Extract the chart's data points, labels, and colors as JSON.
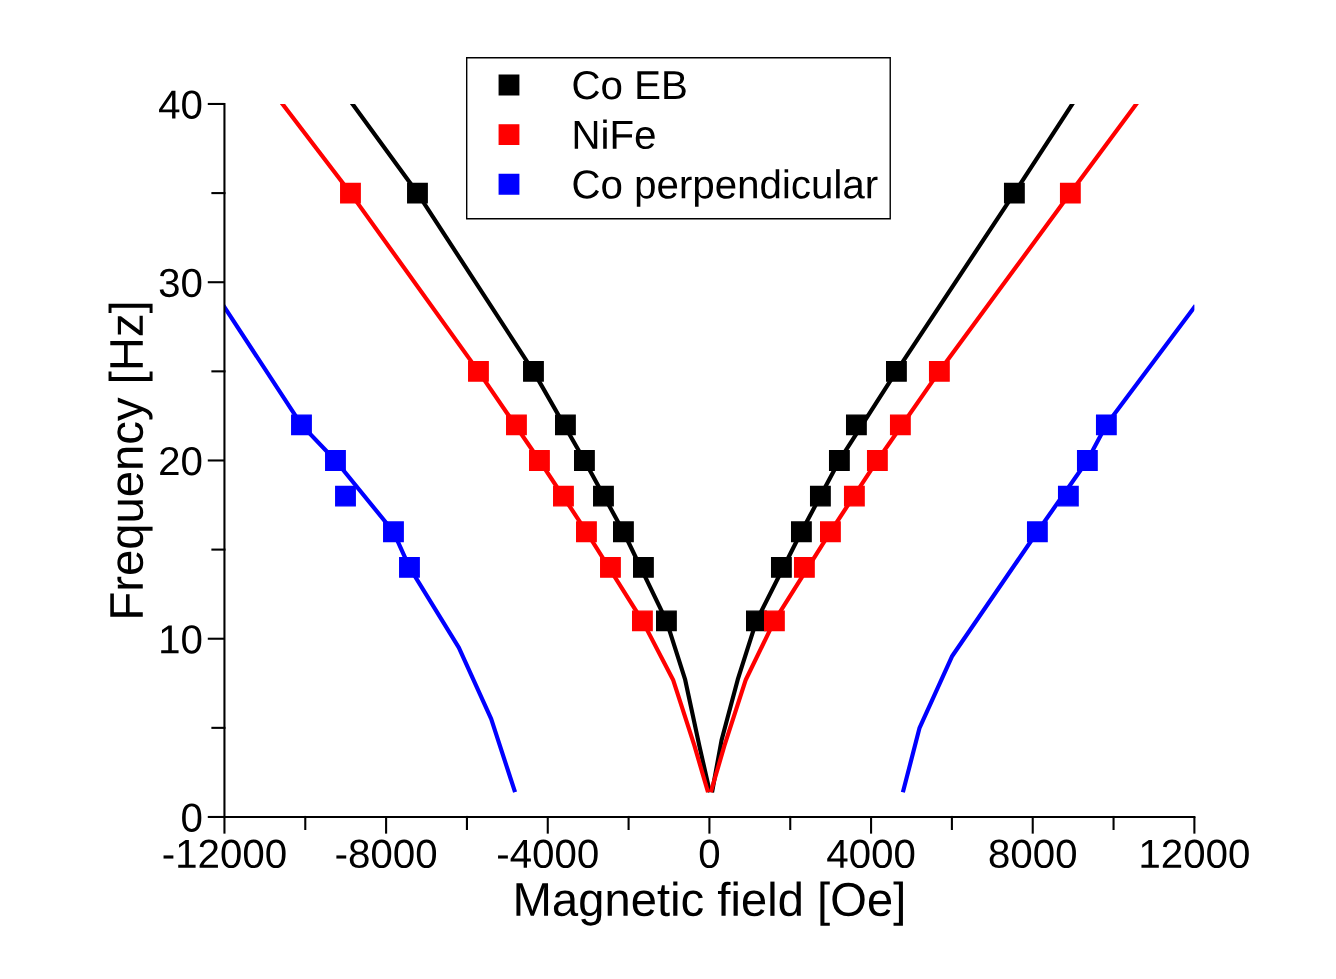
{
  "chart_data": {
    "type": "scatter",
    "xlabel": "Magnetic field [Oe]",
    "ylabel": "Frequency [Hz]",
    "xlim": [
      -12000,
      12000
    ],
    "ylim": [
      0,
      40
    ],
    "xticks": [
      -12000,
      {
        "value": -10000,
        "label": null
      },
      -8000,
      {
        "value": -6000,
        "label": null
      },
      -4000,
      {
        "value": -2000,
        "label": null
      },
      0,
      {
        "value": 2000,
        "label": null
      },
      4000,
      {
        "value": 6000,
        "label": null
      },
      8000,
      {
        "value": 10000,
        "label": null
      },
      12000
    ],
    "yticks": [
      0,
      {
        "value": 5,
        "label": null
      },
      10,
      {
        "value": 15,
        "label": null
      },
      20,
      {
        "value": 25,
        "label": null
      },
      30,
      {
        "value": 35,
        "label": null
      },
      40
    ],
    "grid": false,
    "legend": "top",
    "marker": "square",
    "series": [
      {
        "type": "line",
        "marker": "none",
        "color": "#000000",
        "x": [
          -8832,
          -7224,
          -4354,
          -3093,
          -2128,
          -1064,
          -600,
          -250,
          0
        ],
        "values": [
          40,
          35,
          25,
          20,
          16,
          11,
          7.7,
          4,
          1.5
        ]
      },
      {
        "type": "line",
        "marker": "none",
        "color": "#000000",
        "x": [
          74,
          300,
          700,
          1163,
          2276,
          3216,
          4627,
          7546,
          8981
        ],
        "values": [
          1.5,
          4.3,
          7.7,
          11,
          16,
          20,
          25,
          35,
          40
        ]
      },
      {
        "type": "line",
        "marker": "none",
        "color": "#ff0000",
        "x": [
          -10564,
          -8882,
          -5715,
          -4206,
          -3043,
          -1658,
          -900,
          -371,
          -49
        ],
        "values": [
          40,
          35,
          25,
          20,
          16,
          11,
          7.7,
          4,
          1.5
        ]
      },
      {
        "type": "line",
        "marker": "none",
        "color": "#ff0000",
        "x": [
          49,
          371,
          900,
          1608,
          2994,
          4156,
          5690,
          8931,
          10564
        ],
        "values": [
          1.5,
          4,
          7.7,
          11,
          16,
          20,
          25,
          35,
          40
        ]
      },
      {
        "type": "line",
        "marker": "none",
        "color": "#0000ff",
        "x": [
          -12000,
          -10094,
          -9253,
          -7818,
          -7422,
          -6200,
          -5400,
          -4825
        ],
        "values": [
          28.6,
          22,
          20,
          16,
          14,
          9.5,
          5.5,
          1.5
        ]
      },
      {
        "type": "line",
        "marker": "none",
        "color": "#0000ff",
        "x": [
          4800,
          5200,
          6000,
          8115,
          9352,
          9822,
          12000
        ],
        "values": [
          1.5,
          5,
          9,
          16,
          20,
          22,
          28.6
        ]
      },
      {
        "name": "Co EB",
        "color": "#000000",
        "x": [
          -7224,
          -4354,
          -3563,
          -3093,
          -2622,
          -2128,
          -1633,
          -1064,
          1163,
          1781,
          2276,
          2746,
          3216,
          3637,
          4627,
          7546
        ],
        "values": [
          35,
          25,
          22,
          20,
          18,
          16,
          14,
          11,
          11,
          14,
          16,
          18,
          20,
          22,
          25,
          35
        ]
      },
      {
        "name": "NiFe",
        "color": "#ff0000",
        "x": [
          -8882,
          -5715,
          -4775,
          -4206,
          -3612,
          -3043,
          -2449,
          -1658,
          1608,
          2350,
          2994,
          3587,
          4156,
          4725,
          5690,
          8931
        ],
        "values": [
          35,
          25,
          22,
          20,
          18,
          16,
          14,
          11,
          11,
          14,
          16,
          18,
          20,
          22,
          25,
          35
        ]
      },
      {
        "name": "Co perpendicular",
        "color": "#0000ff",
        "x": [
          -10094,
          -9253,
          -9005,
          -7818,
          -7422,
          8115,
          8882,
          9352,
          9822
        ],
        "values": [
          22,
          20,
          18,
          16,
          14,
          16,
          18,
          20,
          22
        ]
      }
    ]
  }
}
